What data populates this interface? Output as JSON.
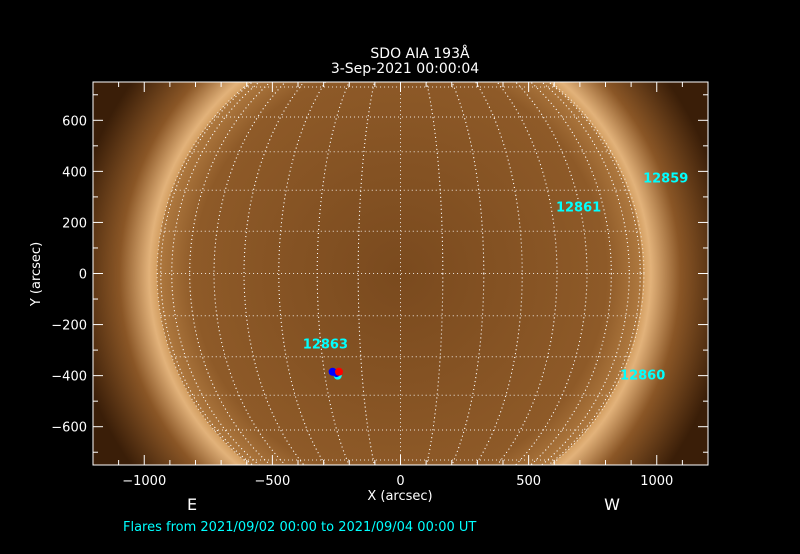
{
  "title": "SDO AIA 193Å",
  "subtitle": "3-Sep-2021 00:00:04",
  "footer": "Flares from 2021/09/02 00:00 to 2021/09/04 00:00 UT",
  "east_label": "E",
  "west_label": "W",
  "colors": {
    "annotation": "#00ffff",
    "axes": "#ffffff",
    "background": "#000000",
    "flare_primary": "#0000ff",
    "flare_secondary": "#ff0000"
  },
  "chart_data": {
    "type": "image",
    "xlabel": "X (arcsec)",
    "ylabel": "Y (arcsec)",
    "xlim": [
      -1200,
      1200
    ],
    "ylim": [
      -750,
      750
    ],
    "xticks": [
      -1000,
      -500,
      0,
      500,
      1000
    ],
    "yticks": [
      -600,
      -400,
      -200,
      0,
      200,
      400,
      600
    ],
    "solar_radius_arcsec": 950,
    "grid_spacing_deg": 10,
    "regions": [
      {
        "label": "12859",
        "x": 1035,
        "y": 376
      },
      {
        "label": "12861",
        "x": 695,
        "y": 263
      },
      {
        "label": "12863",
        "x": -293,
        "y": -275
      },
      {
        "label": "12860",
        "x": 945,
        "y": -396
      }
    ],
    "flares": [
      {
        "x": -265,
        "y": -385,
        "color": "#0000ff"
      },
      {
        "x": -245,
        "y": -400,
        "color": "#00ffff"
      },
      {
        "x": -250,
        "y": -390,
        "color": "#0000ff"
      },
      {
        "x": -240,
        "y": -385,
        "color": "#ff0000"
      }
    ]
  }
}
